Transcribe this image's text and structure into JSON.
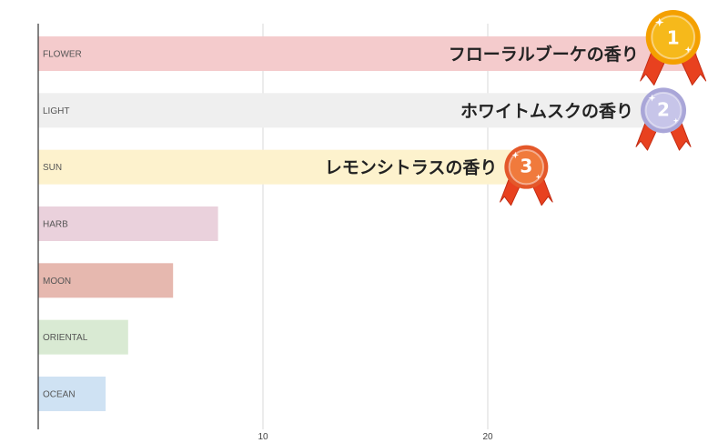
{
  "chart_data": {
    "type": "bar",
    "orientation": "horizontal",
    "categories": [
      "FLOWER",
      "LIGHT",
      "SUN",
      "HARB",
      "MOON",
      "ORIENTAL",
      "OCEAN"
    ],
    "values": [
      29.3,
      28.3,
      22.2,
      8.0,
      6.0,
      4.0,
      3.0
    ],
    "bar_colors": [
      "#f4cbcc",
      "#efefef",
      "#fdf2cd",
      "#ead1dc",
      "#e6b8af",
      "#d9ead3",
      "#cfe2f3"
    ],
    "xlim": [
      0,
      30
    ],
    "xticks": [
      10,
      20
    ],
    "xtick_labels": [
      "10",
      "20"
    ],
    "grid": true,
    "title": "",
    "xlabel": "",
    "ylabel": "",
    "annotations": [
      {
        "category": "FLOWER",
        "text": "フローラルブーケの香り",
        "rank": "1",
        "medal": "gold"
      },
      {
        "category": "LIGHT",
        "text": "ホワイトムスクの香り",
        "rank": "2",
        "medal": "silver"
      },
      {
        "category": "SUN",
        "text": "レモンシトラスの香り",
        "rank": "3",
        "medal": "bronze"
      }
    ]
  },
  "colors": {
    "grid": "#d9d9d9",
    "axis": "#333333",
    "gold": "#f6b91b",
    "gold_rim": "#f4a000",
    "silver": "#c7c5e9",
    "silver_rim": "#a9a6d8",
    "bronze": "#f07a3c",
    "bronze_rim": "#e4582a",
    "ribbon": "#e8411f",
    "ribbon_dark": "#c32b12"
  }
}
